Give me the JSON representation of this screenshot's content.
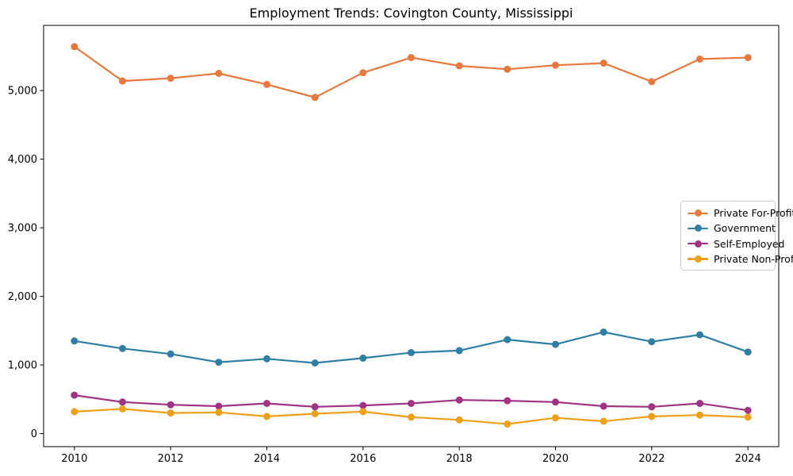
{
  "window": {
    "background": "#ffffff"
  },
  "chart_data": {
    "type": "line",
    "title": "Employment Trends: Covington County, Mississippi",
    "xlabel": "",
    "ylabel": "",
    "x": [
      2010,
      2011,
      2012,
      2013,
      2014,
      2015,
      2016,
      2017,
      2018,
      2019,
      2020,
      2021,
      2022,
      2023,
      2024
    ],
    "series": [
      {
        "name": "Private For-Profit",
        "color": "#e8793e",
        "values": [
          5640,
          5140,
          5180,
          5250,
          5090,
          4900,
          5260,
          5480,
          5360,
          5310,
          5370,
          5400,
          5130,
          5460,
          5480
        ]
      },
      {
        "name": "Government",
        "color": "#2e7fa3",
        "values": [
          1350,
          1240,
          1160,
          1040,
          1090,
          1030,
          1100,
          1180,
          1210,
          1370,
          1300,
          1480,
          1340,
          1440,
          1190
        ]
      },
      {
        "name": "Self-Employed",
        "color": "#a03383",
        "values": [
          560,
          460,
          420,
          400,
          440,
          390,
          410,
          440,
          490,
          480,
          460,
          400,
          390,
          440,
          340
        ]
      },
      {
        "name": "Private Non-Profit",
        "color": "#efa01a",
        "values": [
          320,
          360,
          300,
          310,
          250,
          290,
          320,
          240,
          200,
          140,
          230,
          180,
          250,
          270,
          240
        ]
      }
    ],
    "xticks": [
      2010,
      2012,
      2014,
      2016,
      2018,
      2020,
      2022,
      2024
    ],
    "xtick_labels": [
      "2010",
      "2012",
      "2014",
      "2016",
      "2018",
      "2020",
      "2022",
      "2024"
    ],
    "yticks": [
      0,
      1000,
      2000,
      3000,
      4000,
      5000
    ],
    "ytick_labels": [
      "0",
      "1,000",
      "2,000",
      "3,000",
      "4,000",
      "5,000"
    ],
    "xlim": [
      2009.36,
      2024.64
    ],
    "ylim": [
      -190,
      5950
    ],
    "grid": false,
    "legend_position": "center right",
    "marker": "circle"
  }
}
